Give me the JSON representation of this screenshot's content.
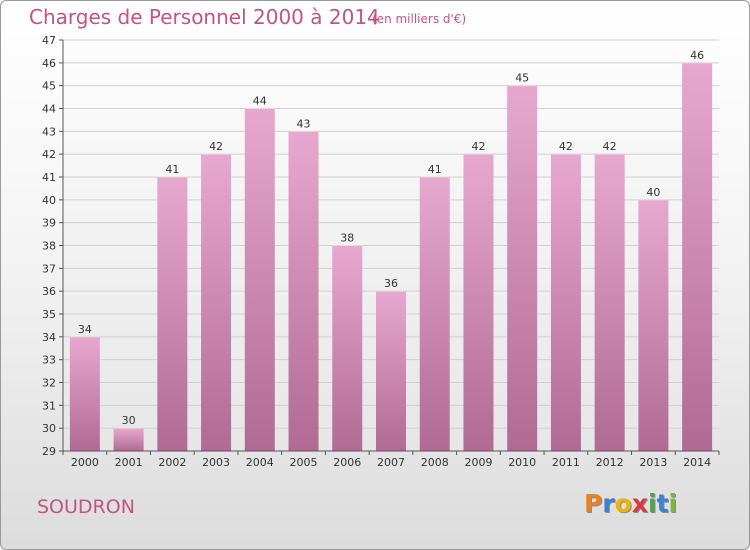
{
  "header": {
    "title": "Charges de Personnel 2000 à 2014",
    "subtitle": "(en milliers d'€)"
  },
  "footer": {
    "commune": "SOUDRON",
    "logo": {
      "letters": [
        "P",
        "r",
        "o",
        "x",
        "i",
        "t",
        "i"
      ],
      "colors": [
        "#e8821e",
        "#3d7fd1",
        "#f0b400",
        "#d93b3b",
        "#49a844",
        "#3d7fd1",
        "#7ab83a"
      ]
    }
  },
  "colors": {
    "bar_top": "#e7a8cf",
    "bar_bottom": "#b06a93",
    "grid": "#d0d0d0",
    "title": "#c2557f"
  },
  "chart_data": {
    "type": "bar",
    "title": "Charges de Personnel 2000 à 2014",
    "subtitle": "(en milliers d'€)",
    "xlabel": "",
    "ylabel": "",
    "categories": [
      "2000",
      "2001",
      "2002",
      "2003",
      "2004",
      "2005",
      "2006",
      "2007",
      "2008",
      "2009",
      "2010",
      "2011",
      "2012",
      "2013",
      "2014"
    ],
    "values": [
      34,
      30,
      41,
      42,
      44,
      43,
      38,
      36,
      41,
      42,
      45,
      42,
      42,
      40,
      46
    ],
    "ylim": [
      29,
      47
    ],
    "yticks": [
      29,
      30,
      31,
      32,
      33,
      34,
      35,
      36,
      37,
      38,
      39,
      40,
      41,
      42,
      43,
      44,
      45,
      46,
      47
    ],
    "grid": true,
    "legend": "none"
  }
}
